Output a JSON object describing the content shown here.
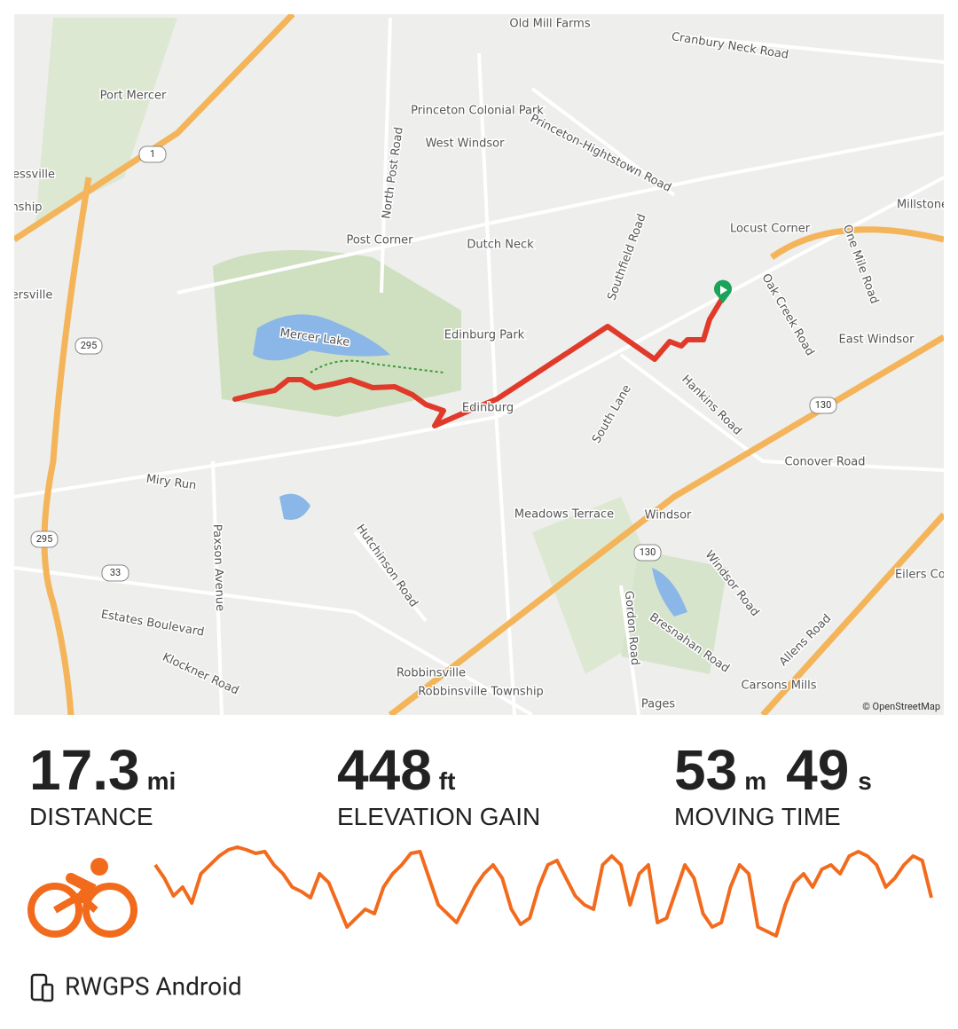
{
  "map": {
    "labels": [
      "Old Mill Farms",
      "Cranbury Neck Road",
      "Port Mercer",
      "Princeton Colonial Park",
      "West Windsor",
      "North Post Road",
      "Princeton-Hightstown Road",
      "essville",
      "nship",
      "Millstone",
      "Locust Corner",
      "Post Corner",
      "Dutch Neck",
      "Southfield Road",
      "One Mile Road",
      "ersville",
      "Oak Creek Road",
      "Mercer Lake",
      "Edinburg Park",
      "East Windsor",
      "Hankins Road",
      "Edinburg",
      "South Lane",
      "Conover Road",
      "Miry Run",
      "Meadows Terrace",
      "Windsor",
      "Hutchinson Road",
      "Paxson Avenue",
      "Windsor Road",
      "Eilers Cor",
      "Gordon Road",
      "Bresnahan Road",
      "Allens Road",
      "Estates Boulevard",
      "Klockner Road",
      "Robbinsville",
      "Robbinsville Township",
      "Carsons Mills",
      "Pages"
    ],
    "shields": [
      "1",
      "295",
      "295",
      "33",
      "130",
      "130"
    ],
    "attribution": "© OpenStreetMap"
  },
  "stats": [
    {
      "value": "17.3",
      "unit": "mi",
      "label": "DISTANCE"
    },
    {
      "value": "448",
      "unit": "ft",
      "label": "ELEVATION GAIN"
    },
    {
      "value": "53",
      "unit": "m",
      "value2": "49",
      "unit2": "s",
      "label": "MOVING TIME"
    }
  ],
  "elevation_profile": {
    "values": [
      83,
      68,
      48,
      58,
      40,
      73,
      83,
      93,
      100,
      103,
      100,
      96,
      98,
      83,
      73,
      58,
      53,
      46,
      73,
      63,
      38,
      13,
      23,
      33,
      28,
      58,
      73,
      83,
      96,
      98,
      68,
      38,
      28,
      18,
      38,
      58,
      73,
      83,
      68,
      33,
      16,
      23,
      58,
      83,
      88,
      68,
      48,
      38,
      33,
      83,
      93,
      83,
      38,
      73,
      83,
      18,
      23,
      53,
      83,
      68,
      28,
      13,
      18,
      58,
      83,
      73,
      13,
      8,
      3,
      38,
      63,
      73,
      58,
      78,
      83,
      73,
      93,
      98,
      93,
      83,
      58,
      68,
      83,
      93,
      88,
      46
    ]
  },
  "footer": {
    "device": "RWGPS Android"
  }
}
